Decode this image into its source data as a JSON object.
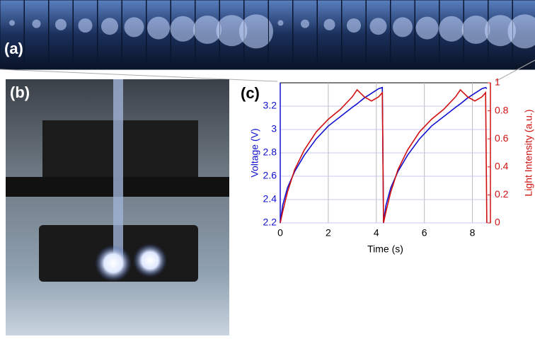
{
  "panel_labels": [
    "(a)",
    "(b)"
  ],
  "chart_data": {
    "type": "line",
    "panel_label": "(c)",
    "x_label": "Time (s)",
    "y_label": "Voltage (V)",
    "y2_label": "Light Intensity (a.u.)",
    "x": [
      0,
      0.1,
      0.3,
      0.6,
      1,
      1.5,
      2,
      2.5,
      3,
      3.2,
      3.5,
      3.8,
      4.1,
      4.25,
      4.3,
      4.4,
      4.6,
      4.9,
      5.3,
      5.8,
      6.3,
      6.8,
      7.3,
      7.5,
      7.8,
      8.1,
      8.4,
      8.55,
      8.6
    ],
    "series": [
      {
        "name": "Voltage",
        "color": "#1010d0",
        "values": [
          2.2,
          2.35,
          2.5,
          2.64,
          2.78,
          2.92,
          3.03,
          3.11,
          3.19,
          3.22,
          3.27,
          3.31,
          3.35,
          3.36,
          2.2,
          2.35,
          2.5,
          2.64,
          2.78,
          2.92,
          3.03,
          3.11,
          3.19,
          3.22,
          3.27,
          3.31,
          3.35,
          3.36,
          3.35
        ]
      },
      {
        "name": "Light Intensity",
        "color": "#d01010",
        "axis": "y2",
        "values": [
          0,
          0.08,
          0.22,
          0.38,
          0.52,
          0.65,
          0.74,
          0.81,
          0.9,
          0.95,
          0.9,
          0.87,
          0.9,
          0.93,
          0,
          0.08,
          0.22,
          0.38,
          0.52,
          0.65,
          0.74,
          0.81,
          0.9,
          0.95,
          0.9,
          0.87,
          0.9,
          0.93,
          0
        ]
      }
    ],
    "xlim": [
      0,
      8.75
    ],
    "xticks": [
      0,
      2,
      4,
      6,
      8
    ],
    "ylim": [
      2.2,
      3.4
    ],
    "yticks": [
      2.2,
      2.4,
      2.6,
      2.8,
      3,
      3.2
    ],
    "y2lim": [
      0,
      1
    ],
    "y2ticks": [
      0,
      0.2,
      0.4,
      0.6,
      0.8,
      1
    ],
    "grid": true
  }
}
